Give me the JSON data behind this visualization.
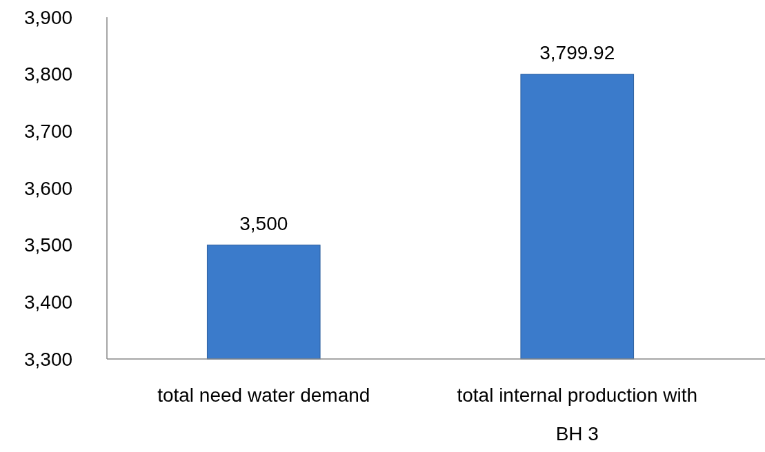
{
  "chart_data": {
    "type": "bar",
    "categories": [
      "total need water demand",
      "total internal production with BH 3"
    ],
    "values": [
      3500,
      3799.92
    ],
    "value_labels": [
      "3,500",
      "3,799.92"
    ],
    "color": "#3b7bcb",
    "ylim": [
      3300,
      3900
    ],
    "yticks": [
      {
        "value": 3300,
        "label": "3,300"
      },
      {
        "value": 3400,
        "label": "3,400"
      },
      {
        "value": 3500,
        "label": "3,500"
      },
      {
        "value": 3600,
        "label": "3,600"
      },
      {
        "value": 3700,
        "label": "3,700"
      },
      {
        "value": 3800,
        "label": "3,800"
      },
      {
        "value": 3900,
        "label": "3,900"
      }
    ],
    "grid": false
  }
}
